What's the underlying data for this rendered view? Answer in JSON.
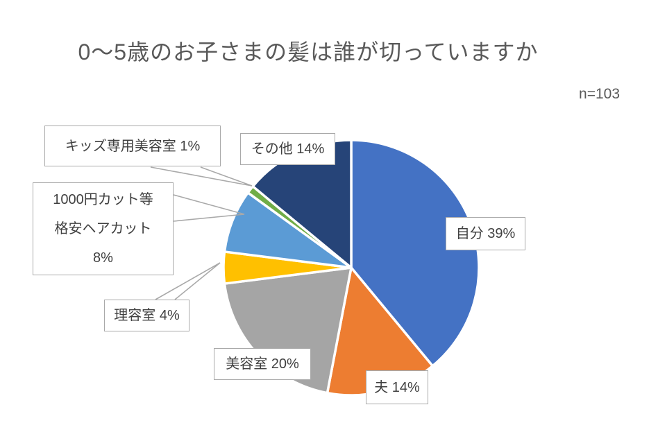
{
  "title": "0～5歳のお子さまの髪は誰が切っていますか",
  "sample_size_label": "n=103",
  "chart_data": {
    "type": "pie",
    "title": "0～5歳のお子さまの髪は誰が切っていますか",
    "sample_size": 103,
    "start_angle_deg": 0,
    "direction": "clockwise",
    "unit": "%",
    "legend": "none",
    "label_style": "callout-boxes-with-leader-lines",
    "categories": [
      "自分",
      "夫",
      "美容室",
      "理容室",
      "1000円カット等格安ヘアカット",
      "キッズ専用美容室",
      "その他"
    ],
    "values": [
      39,
      14,
      20,
      4,
      8,
      1,
      14
    ],
    "colors": [
      "#4472c4",
      "#ed7d31",
      "#a5a5a5",
      "#ffc000",
      "#5b9bd5",
      "#70ad47",
      "#264478"
    ],
    "labels": [
      {
        "text": "自分 39%"
      },
      {
        "text": "夫 14%"
      },
      {
        "text": "美容室 20%"
      },
      {
        "text": "理容室 4%"
      },
      {
        "lines": [
          "1000円カット等",
          "格安ヘアカット",
          "8%"
        ]
      },
      {
        "text": "キッズ専用美容室 1%"
      },
      {
        "text": "その他 14%"
      }
    ]
  }
}
